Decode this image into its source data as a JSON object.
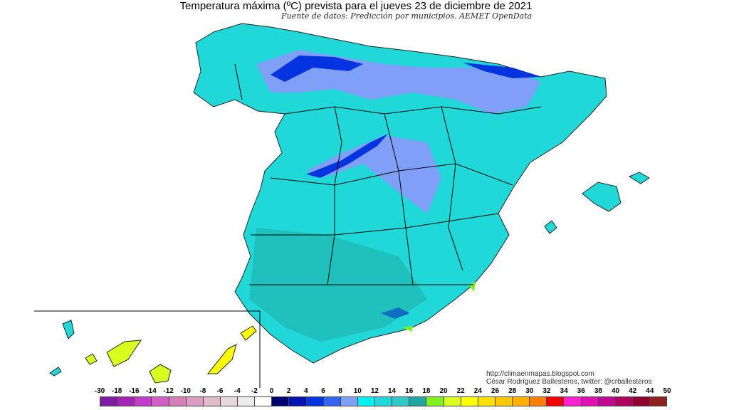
{
  "header": {
    "title": "Temperatura máxima (ºC) prevista para el jueves 23 de diciembre de 2021",
    "subtitle": "Fuente de datos: Predicción por municipios. AEMET OpenData"
  },
  "credits": {
    "url": "http://climaenmapas.blogspot.com",
    "author": "César Rodríguez Ballesteros, twitter: @crballesteros"
  },
  "legend": {
    "unit": "ºC",
    "labels": [
      "-30",
      "-18",
      "-16",
      "-14",
      "-12",
      "-10",
      "-8",
      "-6",
      "-4",
      "-2",
      "0",
      "2",
      "4",
      "6",
      "8",
      "10",
      "12",
      "14",
      "16",
      "18",
      "20",
      "22",
      "24",
      "26",
      "28",
      "30",
      "32",
      "34",
      "36",
      "38",
      "40",
      "42",
      "44",
      "50"
    ],
    "colors": [
      "#7a1fa2",
      "#a424b4",
      "#c43ccc",
      "#d05ec4",
      "#d680b8",
      "#dc9ec0",
      "#e0bcc8",
      "#e8d8dc",
      "#ececec",
      "#ffffff",
      "#000070",
      "#0414b0",
      "#0434e0",
      "#3464f0",
      "#80a0f8",
      "#00f0f0",
      "#20d8d8",
      "#30c8c8",
      "#20a8a0",
      "#80f020",
      "#d8ff20",
      "#ffff00",
      "#ffe000",
      "#ffc800",
      "#ffb000",
      "#ff8000",
      "#f00000",
      "#ff20d0",
      "#e010b0",
      "#c00890",
      "#b00060",
      "#900030",
      "#902020"
    ]
  },
  "map": {
    "dominant_color": "#20d8d8",
    "cold_color": "#80a0f8",
    "coldest_color": "#0434e0",
    "canarias_color": "#d8ff20"
  }
}
